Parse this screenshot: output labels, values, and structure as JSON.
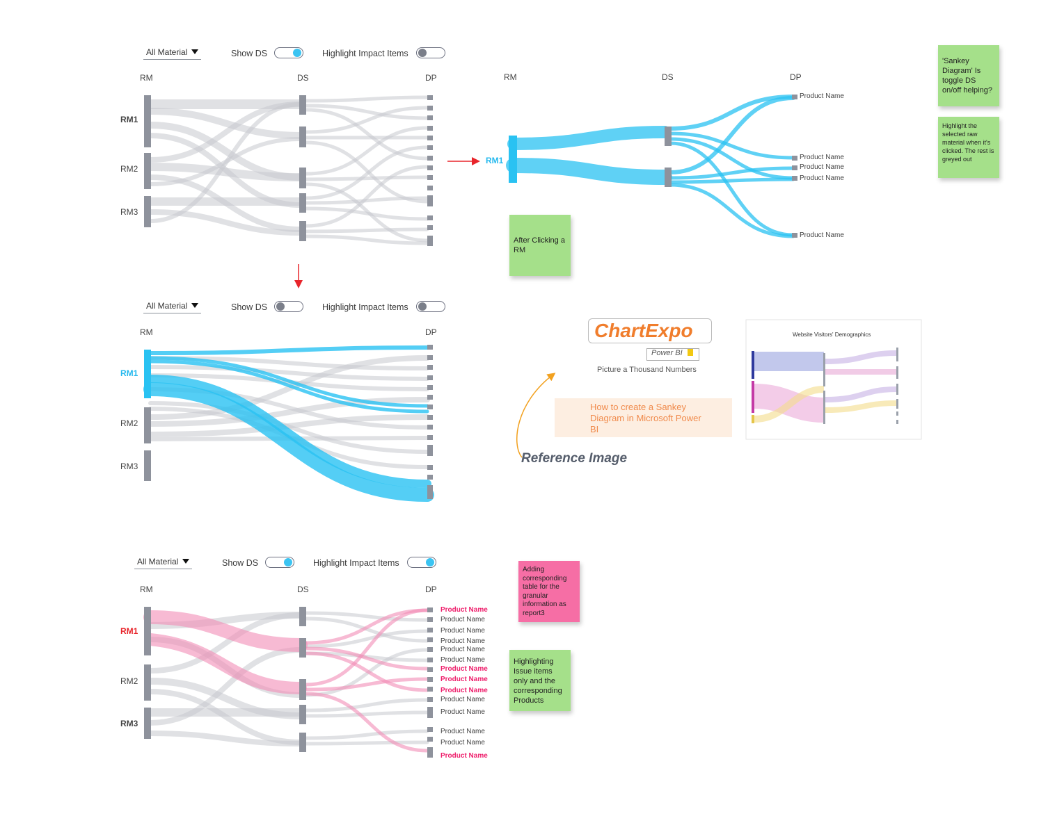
{
  "panels": [
    {
      "controls": {
        "dropdown": "All Material",
        "show_ds_label": "Show DS",
        "show_ds_on": true,
        "highlight_label": "Highlight Impact Items",
        "highlight_on": false
      },
      "headers": {
        "rm": "RM",
        "ds": "DS",
        "dp": "DP"
      },
      "rm_labels": [
        "RM1",
        "RM2",
        "RM3"
      ]
    },
    {
      "headers": {
        "rm": "RM",
        "ds": "DS",
        "dp": "DP"
      },
      "rm_labels": [
        "RM1"
      ],
      "product_labels": [
        "Product Name",
        "Product Name",
        "Product Name",
        "Product Name",
        "Product Name"
      ]
    },
    {
      "controls": {
        "dropdown": "All Material",
        "show_ds_label": "Show DS",
        "show_ds_on": false,
        "highlight_label": "Highlight Impact Items",
        "highlight_on": false
      },
      "headers": {
        "rm": "RM",
        "dp": "DP"
      },
      "rm_labels": [
        "RM1",
        "RM2",
        "RM3"
      ]
    },
    {
      "controls": {
        "dropdown": "All Material",
        "show_ds_label": "Show DS",
        "show_ds_on": true,
        "highlight_label": "Highlight Impact Items",
        "highlight_on": true
      },
      "headers": {
        "rm": "RM",
        "ds": "DS",
        "dp": "DP"
      },
      "rm_labels": [
        "RM1",
        "RM2",
        "RM3"
      ],
      "product_labels": [
        {
          "text": "Product Name",
          "impacted": true
        },
        {
          "text": "Product Name",
          "impacted": false
        },
        {
          "text": "Product Name",
          "impacted": false
        },
        {
          "text": "Product Name",
          "impacted": false
        },
        {
          "text": "Product Name",
          "impacted": false
        },
        {
          "text": "Product Name",
          "impacted": false
        },
        {
          "text": "Product Name",
          "impacted": true
        },
        {
          "text": "Product Name",
          "impacted": true
        },
        {
          "text": "Product Name",
          "impacted": true
        },
        {
          "text": "Product Name",
          "impacted": false
        },
        {
          "text": "Product Name",
          "impacted": false
        },
        {
          "text": "Product Name",
          "impacted": false
        },
        {
          "text": "Product Name",
          "impacted": false
        },
        {
          "text": "Product Name",
          "impacted": true
        }
      ]
    }
  ],
  "notes": {
    "after_click": "After Clicking a RM",
    "sankey_question": "'Sankey Diagram' Is toggle DS on/off helping?",
    "highlight_selected": "Highlight the selected raw material when it's clicked. The rest is greyed out",
    "adding_table": "Adding corresponding table for the granular information as report3",
    "highlighting_issue": "Highlighting Issue items only and the corresponding Products"
  },
  "reference": {
    "brand": "ChartExpo",
    "badge": "Power BI",
    "tagline": "Picture a Thousand Numbers",
    "article_title": "How to create a Sankey Diagram in Microsoft Power BI",
    "caption": "Reference Image",
    "thumb_title": "Website Visitors' Demographics"
  },
  "colors": {
    "grey_flow": "#c9cbd0",
    "node": "#8e929c",
    "blue": "#29c2f2",
    "pink": "#f4a4c4",
    "red_arrow": "#e8252b",
    "orange_arrow": "#f2a11f"
  }
}
